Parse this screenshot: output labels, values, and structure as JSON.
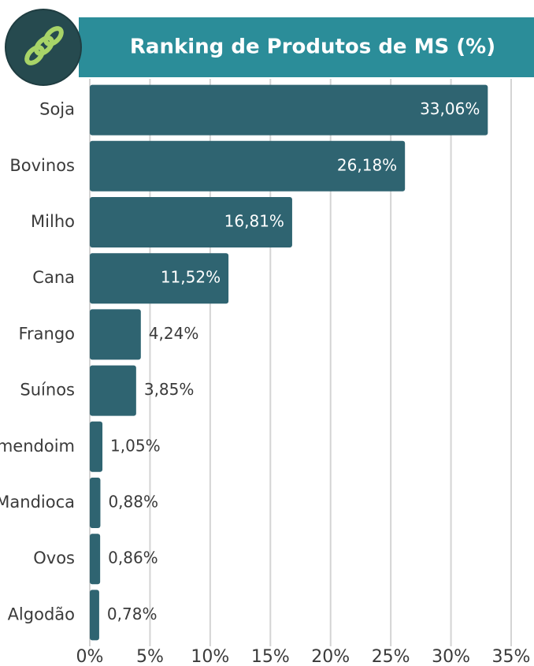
{
  "chart_data": {
    "type": "bar",
    "orientation": "horizontal",
    "title": "Ranking de Produtos de MS (%)",
    "categories": [
      "Soja",
      "Bovinos",
      "Milho",
      "Cana",
      "Frango",
      "Suínos",
      "Amendoim",
      "Mandioca",
      "Ovos",
      "Algodão"
    ],
    "values": [
      33.06,
      26.18,
      16.81,
      11.52,
      4.24,
      3.85,
      1.05,
      0.88,
      0.86,
      0.78
    ],
    "value_labels": [
      "33,06%",
      "26,18%",
      "16,81%",
      "11,52%",
      "4,24%",
      "3,85%",
      "1,05%",
      "0,88%",
      "0,86%",
      "0,78%"
    ],
    "color": "#2f6471",
    "xlim": [
      0,
      35
    ],
    "xticks": [
      {
        "value": 0,
        "label": "0%"
      },
      {
        "value": 5,
        "label": "5%"
      },
      {
        "value": 10,
        "label": "10%"
      },
      {
        "value": 15,
        "label": "15%"
      },
      {
        "value": 20,
        "label": "20%"
      },
      {
        "value": 25,
        "label": "25%"
      },
      {
        "value": 30,
        "label": "30%"
      },
      {
        "value": 35,
        "label": "35%"
      }
    ],
    "grid": true
  }
}
